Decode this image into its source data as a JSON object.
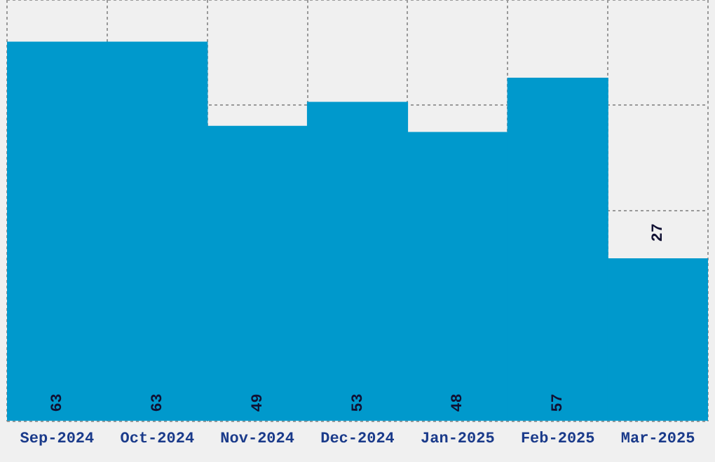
{
  "chart_data": {
    "type": "bar",
    "categories": [
      "Sep-2024",
      "Oct-2024",
      "Nov-2024",
      "Dec-2024",
      "Jan-2025",
      "Feb-2025",
      "Mar-2025"
    ],
    "values": [
      63,
      63,
      49,
      53,
      48,
      57,
      27
    ],
    "color": "#0099cc",
    "ylim": [
      0,
      70
    ],
    "grid": true,
    "tick_labels": "x",
    "data_labels": true
  }
}
